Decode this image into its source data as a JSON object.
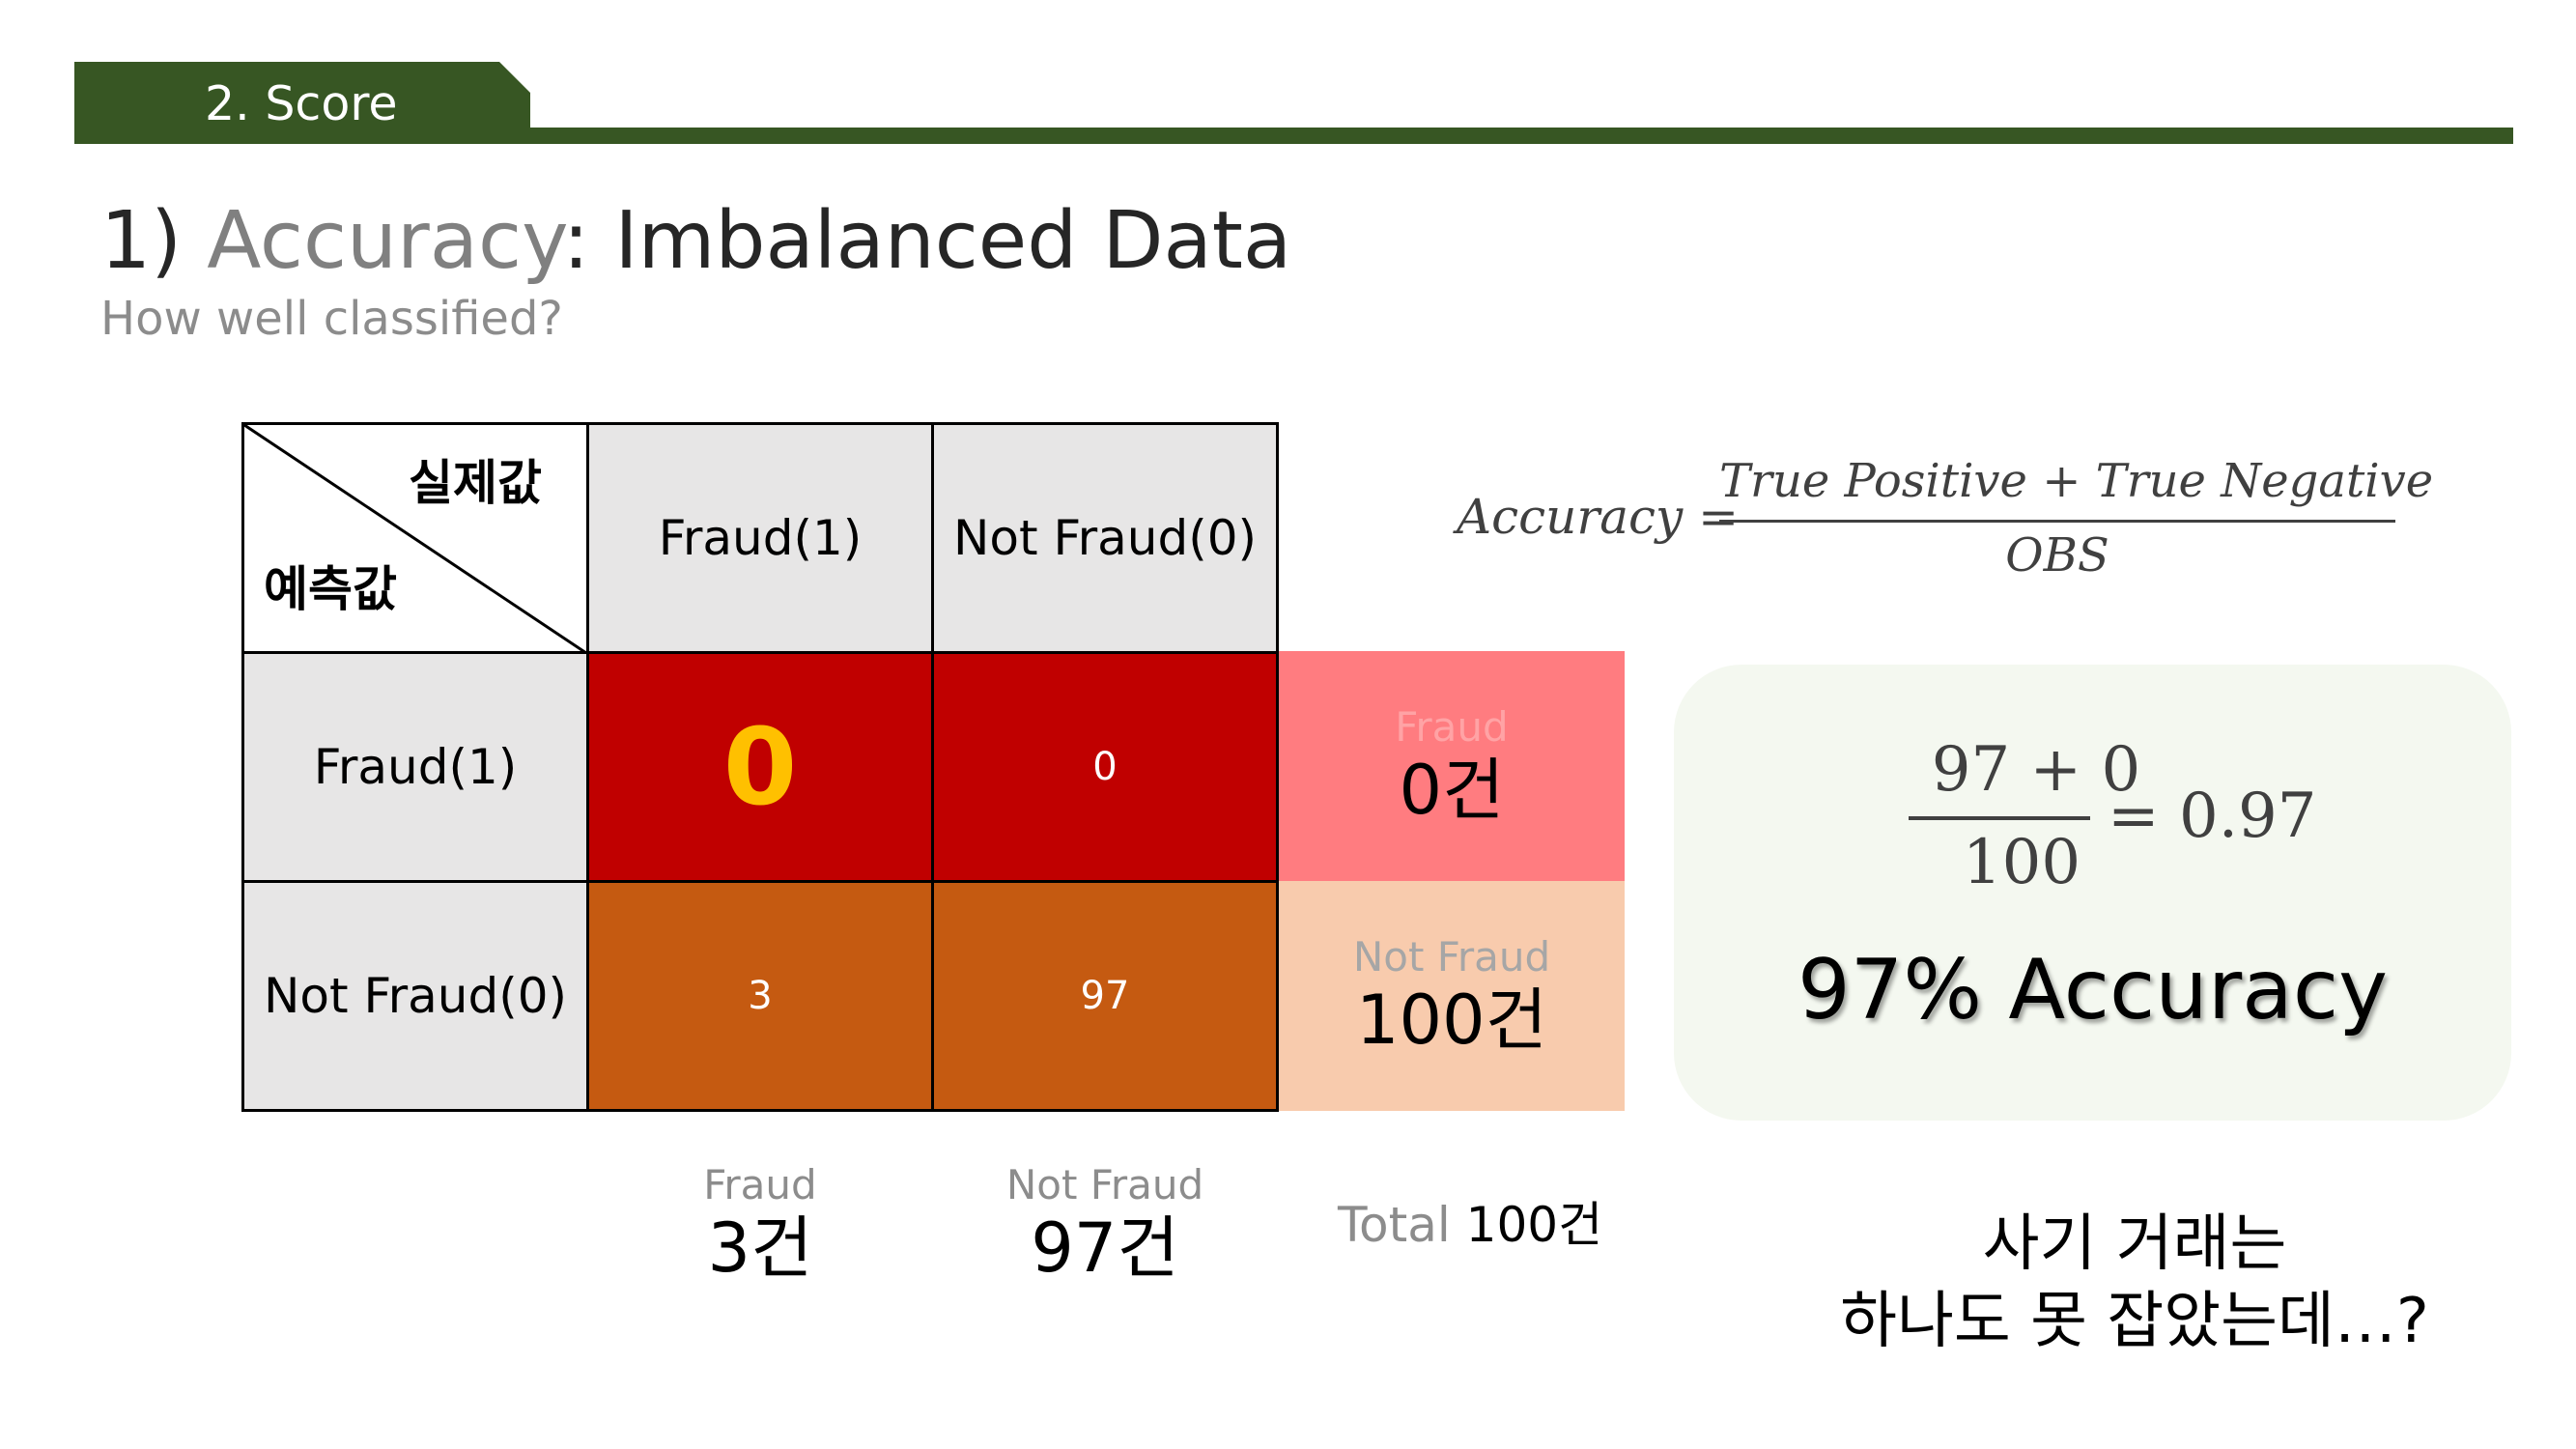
{
  "header": {
    "section_tab": "2. Score",
    "accent_color": "#375623"
  },
  "title": {
    "number": "1) ",
    "accent": "Accuracy",
    "rest": ": Imbalanced Data"
  },
  "subtitle": "How well classified?",
  "matrix": {
    "corner_top": "실제값",
    "corner_bottom": "예측값",
    "col_headers": [
      "Fraud(1)",
      "Not Fraud(0)"
    ],
    "row_headers": [
      "Fraud(1)",
      "Not Fraud(0)"
    ],
    "cells": [
      [
        "0",
        "0"
      ],
      [
        "3",
        "97"
      ]
    ],
    "row_totals": [
      {
        "label": "Fraud",
        "value": "0건"
      },
      {
        "label": "Not Fraud",
        "value": "100건"
      }
    ],
    "col_totals": [
      {
        "label": "Fraud",
        "value": "3건"
      },
      {
        "label": "Not Fraud",
        "value": "97건"
      }
    ],
    "total": {
      "label": "Total ",
      "value": "100건"
    }
  },
  "formula": {
    "lhs": "Accuracy =",
    "numerator": "True Positive + True Negative",
    "denominator": "OBS"
  },
  "result": {
    "numerator": "97 + 0",
    "denominator": "100",
    "equals": "= 0.97",
    "headline": "97% Accuracy"
  },
  "question": {
    "line1": "사기 거래는",
    "line2": "하나도 못 잡았는데…?"
  }
}
